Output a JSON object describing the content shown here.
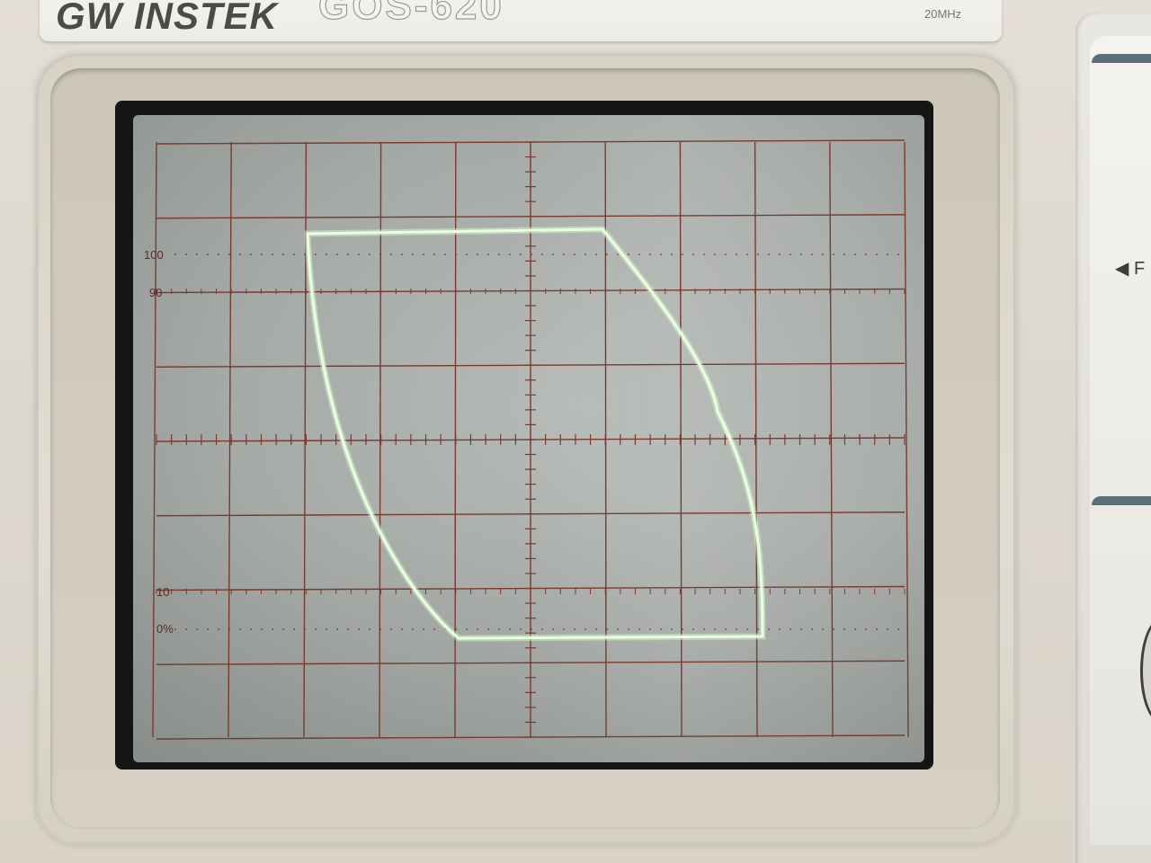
{
  "brand": {
    "logo": "GW INSTEK",
    "model": "GOS-620",
    "bandwidth": "20MHz"
  },
  "screen": {
    "graticule_labels": [
      "100",
      "90",
      "10",
      "0%"
    ],
    "trace_color": "#e6ffd8",
    "grid_color": "#7a3a30"
  },
  "side_panel": {
    "arrow_label": "◀ F"
  }
}
